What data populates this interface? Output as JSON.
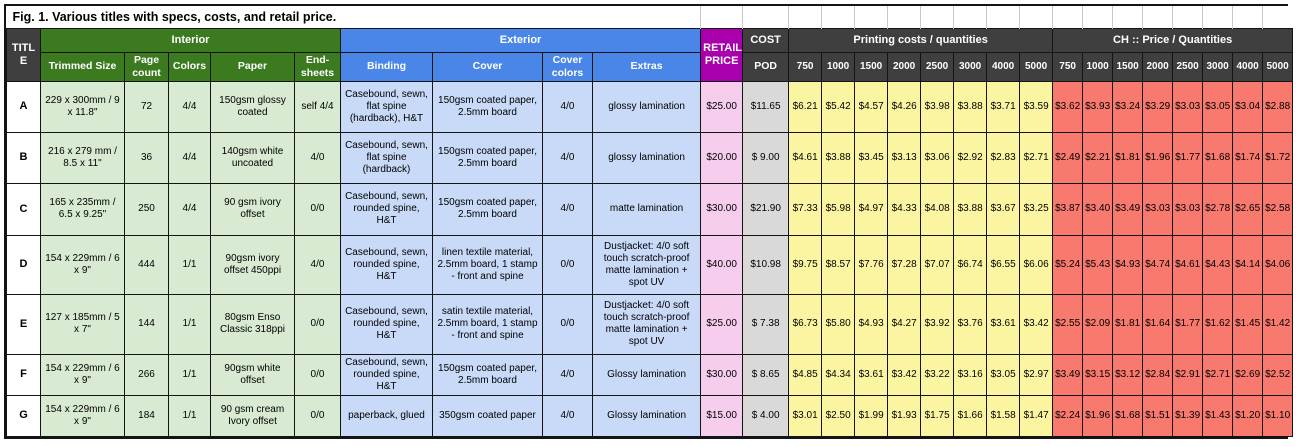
{
  "caption": "Fig. 1. Various titles with specs, costs, and retail price.",
  "colors": {
    "group_interior": "#3b7a1f",
    "group_exterior": "#4a86e8",
    "group_retail": "#a800ad",
    "group_dark": "#3f3f3f",
    "cell_interior": "#d9ead3",
    "cell_exterior": "#c9daf8",
    "cell_retail": "#f7cdee",
    "cell_pod": "#d9d9d9",
    "cell_printing": "#fbf5a2",
    "cell_ch": "#f8796d"
  },
  "table": {
    "groups": {
      "title": "TITLE",
      "interior": "Interior",
      "exterior": "Exterior",
      "retail": "RETAIL PRICE",
      "cost": "COST",
      "pod": "POD",
      "printing": "Printing costs / quantities",
      "ch": "CH :: Price / Quantities"
    },
    "interior_cols": [
      "Trimmed Size",
      "Page count",
      "Colors",
      "Paper",
      "End-sheets"
    ],
    "exterior_cols": [
      "Binding",
      "Cover",
      "Cover colors",
      "Extras"
    ],
    "quantities": [
      "750",
      "1000",
      "1500",
      "2000",
      "2500",
      "3000",
      "4000",
      "5000"
    ],
    "rows": [
      {
        "title": "A",
        "trimmed_size": "229 x 300mm / 9 x 11.8\"",
        "page_count": "72",
        "colors": "4/4",
        "paper": "150gsm glossy coated",
        "end_sheets": "self 4/4",
        "binding": "Casebound, sewn, flat spine (hardback), H&T",
        "cover": "150gsm coated paper, 2.5mm board",
        "cover_colors": "4/0",
        "extras": "glossy lamination",
        "retail": "$25.00",
        "pod": "$11.65",
        "printing": [
          "$6.21",
          "$5.42",
          "$4.57",
          "$4.26",
          "$3.98",
          "$3.88",
          "$3.71",
          "$3.59"
        ],
        "ch": [
          "$3.62",
          "$3.93",
          "$3.24",
          "$3.29",
          "$3.03",
          "$3.05",
          "$3.04",
          "$2.88"
        ]
      },
      {
        "title": "B",
        "trimmed_size": "216 x 279 mm / 8.5 x 11\"",
        "page_count": "36",
        "colors": "4/4",
        "paper": "140gsm white uncoated",
        "end_sheets": "4/0",
        "binding": "Casebound, sewn, flat spine (hardback)",
        "cover": "150gsm coated paper, 2.5mm board",
        "cover_colors": "4/0",
        "extras": "glossy lamination",
        "retail": "$20.00",
        "pod": "$ 9.00",
        "printing": [
          "$4.61",
          "$3.88",
          "$3.45",
          "$3.13",
          "$3.06",
          "$2.92",
          "$2.83",
          "$2.71"
        ],
        "ch": [
          "$2.49",
          "$2.21",
          "$1.81",
          "$1.96",
          "$1.77",
          "$1.68",
          "$1.74",
          "$1.72"
        ]
      },
      {
        "title": "C",
        "trimmed_size": "165 x 235mm / 6.5 x 9.25\"",
        "page_count": "250",
        "colors": "4/4",
        "paper": "90 gsm ivory offset",
        "end_sheets": "0/0",
        "binding": "Casebound, sewn, rounded spine, H&T",
        "cover": "150gsm coated paper, 2.5mm board",
        "cover_colors": "4/0",
        "extras": "matte lamination",
        "retail": "$30.00",
        "pod": "$21.90",
        "printing": [
          "$7.33",
          "$5.98",
          "$4.97",
          "$4.33",
          "$4.08",
          "$3.88",
          "$3.67",
          "$3.25"
        ],
        "ch": [
          "$3.87",
          "$3.40",
          "$3.49",
          "$3.03",
          "$3.03",
          "$2.78",
          "$2.65",
          "$2.58"
        ]
      },
      {
        "title": "D",
        "trimmed_size": "154 x 229mm / 6 x 9\"",
        "page_count": "444",
        "colors": "1/1",
        "paper": "90gsm ivory offset 450ppi",
        "end_sheets": "4/0",
        "binding": "Casebound, sewn, rounded spine, H&T",
        "cover": "linen textile material, 2.5mm board, 1 stamp - front and spine",
        "cover_colors": "0/0",
        "extras": "Dustjacket: 4/0 soft touch scratch-proof matte lamination + spot UV",
        "retail": "$40.00",
        "pod": "$10.98",
        "printing": [
          "$9.75",
          "$8.57",
          "$7.76",
          "$7.28",
          "$7.07",
          "$6.74",
          "$6.55",
          "$6.06"
        ],
        "ch": [
          "$5.24",
          "$5.43",
          "$4.93",
          "$4.74",
          "$4.61",
          "$4.43",
          "$4.14",
          "$4.06"
        ]
      },
      {
        "title": "E",
        "trimmed_size": "127 x 185mm / 5 x 7\"",
        "page_count": "144",
        "colors": "1/1",
        "paper": "80gsm Enso Classic 318ppi",
        "end_sheets": "0/0",
        "binding": "Casebound, sewn, rounded spine, H&T",
        "cover": "satin textile material, 2.5mm board, 1 stamp - front and spine",
        "cover_colors": "0/0",
        "extras": "Dustjacket: 4/0 soft touch scratch-proof matte lamination + spot UV",
        "retail": "$25.00",
        "pod": "$ 7.38",
        "printing": [
          "$6.73",
          "$5.80",
          "$4.93",
          "$4.27",
          "$3.92",
          "$3.76",
          "$3.61",
          "$3.42"
        ],
        "ch": [
          "$2.55",
          "$2.09",
          "$1.81",
          "$1.64",
          "$1.77",
          "$1.62",
          "$1.45",
          "$1.42"
        ]
      },
      {
        "title": "F",
        "trimmed_size": "154 x 229mm / 6 x 9\"",
        "page_count": "266",
        "colors": "1/1",
        "paper": "90gsm white offset",
        "end_sheets": "0/0",
        "binding": "Casebound, sewn, rounded spine, H&T",
        "cover": "150gsm coated paper, 2.5mm board",
        "cover_colors": "4/0",
        "extras": "Glossy lamination",
        "retail": "$30.00",
        "pod": "$ 8.65",
        "printing": [
          "$4.85",
          "$4.34",
          "$3.61",
          "$3.42",
          "$3.22",
          "$3.16",
          "$3.05",
          "$2.97"
        ],
        "ch": [
          "$3.49",
          "$3.15",
          "$3.12",
          "$2.84",
          "$2.91",
          "$2.71",
          "$2.69",
          "$2.52"
        ]
      },
      {
        "title": "G",
        "trimmed_size": "154 x 229mm / 6 x 9\"",
        "page_count": "184",
        "colors": "1/1",
        "paper": "90 gsm cream Ivory offset",
        "end_sheets": "0/0",
        "binding": "paperback, glued",
        "cover": "350gsm coated paper",
        "cover_colors": "4/0",
        "extras": "Glossy lamination",
        "retail": "$15.00",
        "pod": "$ 4.00",
        "printing": [
          "$3.01",
          "$2.50",
          "$1.99",
          "$1.93",
          "$1.75",
          "$1.66",
          "$1.58",
          "$1.47"
        ],
        "ch": [
          "$2.24",
          "$1.96",
          "$1.68",
          "$1.51",
          "$1.39",
          "$1.43",
          "$1.20",
          "$1.10"
        ]
      }
    ]
  }
}
